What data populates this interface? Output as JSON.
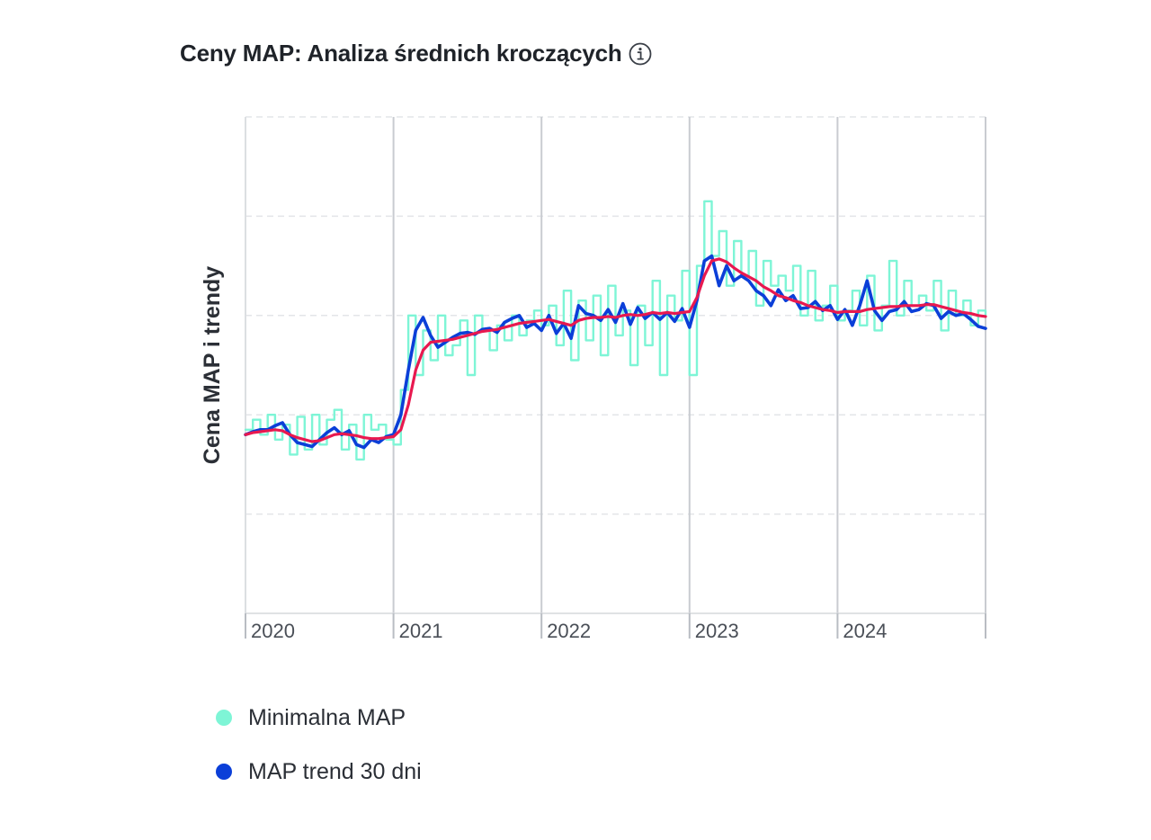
{
  "header": {
    "title": "Ceny MAP: Analiza średnich kroczących",
    "info_icon": "info-circle-icon"
  },
  "legend": {
    "items": [
      {
        "label": "Minimalna MAP",
        "color": "#7ef5d6"
      },
      {
        "label": "MAP trend 30 dni",
        "color": "#0b3fd8"
      }
    ]
  },
  "chart_data": {
    "type": "line",
    "title": "Ceny MAP: Analiza średnich kroczących",
    "xlabel": "",
    "ylabel": "Cena MAP i trendy",
    "x_ticks": [
      "2020",
      "2021",
      "2022",
      "2023",
      "2024"
    ],
    "xlim": [
      2020.0,
      2025.0
    ],
    "ylim": [
      0,
      50
    ],
    "y_grid": [
      10,
      20,
      30,
      40,
      50
    ],
    "y_tick_labels_shown": false,
    "grid": true,
    "legend_position": "bottom-left",
    "colors": {
      "min_map": "#7ef5d6",
      "trend30": "#0b3fd8",
      "trend_long": "#e8194f"
    },
    "series": [
      {
        "name": "Minimalna MAP",
        "role": "min_map",
        "x": [
          2020.0,
          2020.05,
          2020.1,
          2020.15,
          2020.2,
          2020.25,
          2020.3,
          2020.35,
          2020.4,
          2020.45,
          2020.5,
          2020.55,
          2020.6,
          2020.65,
          2020.7,
          2020.75,
          2020.8,
          2020.85,
          2020.9,
          2020.95,
          2021.0,
          2021.05,
          2021.1,
          2021.15,
          2021.2,
          2021.25,
          2021.3,
          2021.35,
          2021.4,
          2021.45,
          2021.5,
          2021.55,
          2021.6,
          2021.65,
          2021.7,
          2021.75,
          2021.8,
          2021.85,
          2021.9,
          2021.95,
          2022.0,
          2022.05,
          2022.1,
          2022.15,
          2022.2,
          2022.25,
          2022.3,
          2022.35,
          2022.4,
          2022.45,
          2022.5,
          2022.55,
          2022.6,
          2022.65,
          2022.7,
          2022.75,
          2022.8,
          2022.85,
          2022.9,
          2022.95,
          2023.0,
          2023.05,
          2023.1,
          2023.15,
          2023.2,
          2023.25,
          2023.3,
          2023.35,
          2023.4,
          2023.45,
          2023.5,
          2023.55,
          2023.6,
          2023.65,
          2023.7,
          2023.75,
          2023.8,
          2023.85,
          2023.9,
          2023.95,
          2024.0,
          2024.05,
          2024.1,
          2024.15,
          2024.2,
          2024.25,
          2024.3,
          2024.35,
          2024.4,
          2024.45,
          2024.5,
          2024.55,
          2024.6,
          2024.65,
          2024.7,
          2024.75,
          2024.8,
          2024.85,
          2024.9,
          2024.95,
          2025.0
        ],
        "values": [
          18.5,
          19.5,
          18.0,
          20.0,
          17.5,
          19.0,
          16.0,
          19.8,
          16.5,
          20.0,
          17.0,
          19.5,
          20.5,
          16.5,
          19.0,
          15.5,
          20.0,
          18.5,
          19.0,
          17.5,
          17.0,
          22.5,
          30.0,
          24.0,
          28.5,
          25.5,
          30.0,
          26.0,
          27.0,
          29.5,
          24.0,
          30.0,
          28.5,
          26.5,
          29.0,
          27.5,
          30.0,
          28.0,
          29.5,
          30.5,
          29.0,
          31.0,
          27.0,
          32.5,
          25.5,
          31.5,
          27.5,
          32.0,
          26.0,
          33.0,
          28.0,
          30.5,
          25.0,
          31.0,
          27.0,
          33.5,
          24.0,
          32.0,
          29.5,
          34.5,
          24.0,
          35.0,
          41.5,
          36.0,
          38.5,
          33.0,
          37.5,
          34.0,
          36.5,
          31.0,
          35.5,
          33.0,
          34.0,
          32.5,
          35.0,
          30.0,
          34.5,
          29.5,
          31.0,
          33.0,
          29.5,
          30.5,
          32.5,
          29.0,
          34.0,
          28.5,
          31.0,
          35.5,
          30.0,
          33.5,
          31.0,
          32.0,
          30.5,
          33.5,
          28.5,
          32.5,
          30.0,
          31.5,
          29.0,
          30.5,
          30.0
        ]
      },
      {
        "name": "MAP trend 30 dni",
        "role": "trend30",
        "x": [
          2020.0,
          2020.05,
          2020.1,
          2020.15,
          2020.2,
          2020.25,
          2020.3,
          2020.35,
          2020.4,
          2020.45,
          2020.5,
          2020.55,
          2020.6,
          2020.65,
          2020.7,
          2020.75,
          2020.8,
          2020.85,
          2020.9,
          2020.95,
          2021.0,
          2021.05,
          2021.1,
          2021.15,
          2021.2,
          2021.25,
          2021.3,
          2021.35,
          2021.4,
          2021.45,
          2021.5,
          2021.55,
          2021.6,
          2021.65,
          2021.7,
          2021.75,
          2021.8,
          2021.85,
          2021.9,
          2021.95,
          2022.0,
          2022.05,
          2022.1,
          2022.15,
          2022.2,
          2022.25,
          2022.3,
          2022.35,
          2022.4,
          2022.45,
          2022.5,
          2022.55,
          2022.6,
          2022.65,
          2022.7,
          2022.75,
          2022.8,
          2022.85,
          2022.9,
          2022.95,
          2023.0,
          2023.05,
          2023.1,
          2023.15,
          2023.2,
          2023.25,
          2023.3,
          2023.35,
          2023.4,
          2023.45,
          2023.5,
          2023.55,
          2023.6,
          2023.65,
          2023.7,
          2023.75,
          2023.8,
          2023.85,
          2023.9,
          2023.95,
          2024.0,
          2024.05,
          2024.1,
          2024.15,
          2024.2,
          2024.25,
          2024.3,
          2024.35,
          2024.4,
          2024.45,
          2024.5,
          2024.55,
          2024.6,
          2024.65,
          2024.7,
          2024.75,
          2024.8,
          2024.85,
          2024.9,
          2024.95,
          2025.0
        ],
        "values": [
          18.0,
          18.3,
          18.5,
          18.5,
          18.9,
          19.2,
          18.0,
          17.2,
          17.0,
          16.8,
          17.5,
          18.2,
          18.7,
          18.0,
          18.4,
          17.0,
          16.7,
          17.5,
          17.2,
          17.8,
          18.0,
          20.0,
          24.5,
          28.5,
          29.8,
          28.0,
          26.8,
          27.3,
          27.8,
          28.2,
          28.3,
          28.1,
          28.6,
          28.7,
          28.3,
          29.3,
          29.7,
          30.0,
          28.8,
          29.2,
          28.5,
          30.0,
          28.2,
          29.2,
          27.7,
          31.0,
          30.2,
          30.0,
          29.5,
          30.6,
          29.3,
          31.2,
          29.1,
          30.8,
          29.7,
          30.3,
          29.6,
          30.3,
          29.4,
          30.7,
          28.8,
          31.5,
          35.5,
          36.0,
          33.0,
          35.0,
          33.5,
          34.0,
          33.5,
          32.5,
          32.0,
          31.0,
          32.6,
          31.5,
          32.0,
          30.7,
          30.8,
          31.4,
          30.5,
          31.0,
          29.6,
          30.6,
          29.0,
          31.0,
          33.5,
          30.5,
          29.5,
          30.4,
          30.6,
          31.4,
          30.4,
          30.6,
          31.2,
          31.0,
          29.7,
          30.4,
          30.0,
          30.2,
          29.6,
          28.9,
          28.7
        ]
      },
      {
        "role": "trend_long",
        "x": [
          2020.0,
          2020.05,
          2020.1,
          2020.15,
          2020.2,
          2020.25,
          2020.3,
          2020.35,
          2020.4,
          2020.45,
          2020.5,
          2020.55,
          2020.6,
          2020.65,
          2020.7,
          2020.75,
          2020.8,
          2020.85,
          2020.9,
          2020.95,
          2021.0,
          2021.05,
          2021.1,
          2021.15,
          2021.2,
          2021.25,
          2021.3,
          2021.35,
          2021.4,
          2021.45,
          2021.5,
          2021.55,
          2021.6,
          2021.65,
          2021.7,
          2021.75,
          2021.8,
          2021.85,
          2021.9,
          2021.95,
          2022.0,
          2022.05,
          2022.1,
          2022.15,
          2022.2,
          2022.25,
          2022.3,
          2022.35,
          2022.4,
          2022.45,
          2022.5,
          2022.55,
          2022.6,
          2022.65,
          2022.7,
          2022.75,
          2022.8,
          2022.85,
          2022.9,
          2022.95,
          2023.0,
          2023.05,
          2023.1,
          2023.15,
          2023.2,
          2023.25,
          2023.3,
          2023.35,
          2023.4,
          2023.45,
          2023.5,
          2023.55,
          2023.6,
          2023.65,
          2023.7,
          2023.75,
          2023.8,
          2023.85,
          2023.9,
          2023.95,
          2024.0,
          2024.05,
          2024.1,
          2024.15,
          2024.2,
          2024.25,
          2024.3,
          2024.35,
          2024.4,
          2024.45,
          2024.5,
          2024.55,
          2024.6,
          2024.65,
          2024.7,
          2024.75,
          2024.8,
          2024.85,
          2024.9,
          2024.95,
          2025.0
        ],
        "values": [
          18.0,
          18.2,
          18.3,
          18.4,
          18.5,
          18.4,
          18.0,
          17.7,
          17.5,
          17.3,
          17.4,
          17.7,
          18.0,
          18.1,
          18.0,
          17.9,
          17.7,
          17.6,
          17.6,
          17.7,
          17.8,
          18.5,
          21.0,
          24.5,
          26.5,
          27.3,
          27.4,
          27.5,
          27.6,
          27.8,
          28.0,
          28.2,
          28.4,
          28.5,
          28.6,
          28.8,
          29.0,
          29.2,
          29.3,
          29.4,
          29.5,
          29.6,
          29.4,
          29.2,
          29.0,
          29.5,
          29.7,
          29.8,
          29.8,
          29.9,
          29.8,
          30.0,
          30.1,
          30.0,
          30.1,
          30.3,
          30.2,
          30.3,
          30.2,
          30.3,
          30.4,
          31.8,
          34.0,
          35.5,
          35.7,
          35.4,
          34.8,
          34.3,
          33.9,
          33.5,
          32.9,
          32.5,
          32.0,
          31.8,
          31.5,
          31.3,
          31.0,
          30.8,
          30.6,
          30.5,
          30.3,
          30.4,
          30.4,
          30.4,
          30.6,
          30.7,
          30.8,
          30.9,
          30.9,
          31.0,
          31.0,
          31.0,
          31.1,
          31.1,
          30.9,
          30.7,
          30.5,
          30.3,
          30.2,
          30.0,
          29.9
        ]
      }
    ]
  }
}
